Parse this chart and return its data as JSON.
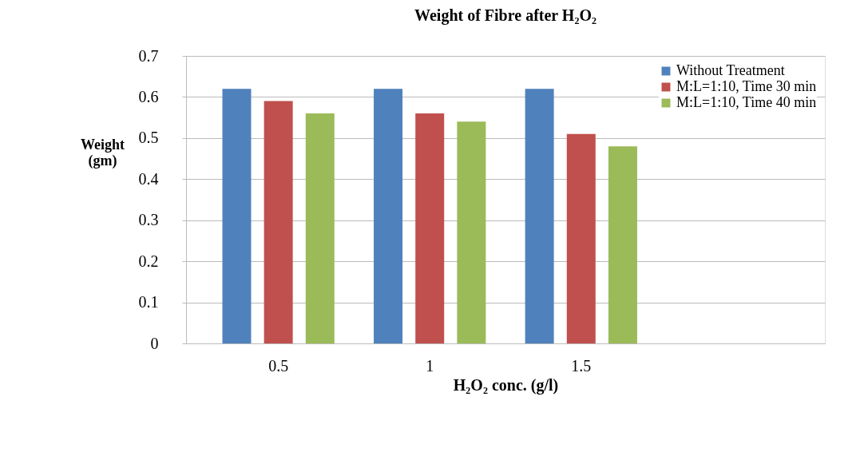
{
  "chart_data": {
    "type": "bar",
    "title": "Weight of Fibre after H₂O₂",
    "xlabel": "H₂O₂ conc. (g/l)",
    "ylabel": "Weight (gm)",
    "categories": [
      "0.5",
      "1",
      "1.5",
      null
    ],
    "series": [
      {
        "name": "Without Treatment",
        "color": "#4f81bd",
        "values": [
          0.62,
          0.62,
          0.62,
          null
        ]
      },
      {
        "name": "M:L=1:10, Time 30 min",
        "color": "#c0504d",
        "values": [
          0.59,
          0.56,
          0.51,
          null
        ]
      },
      {
        "name": "M:L=1:10, Time 40 min",
        "color": "#9bbb59",
        "values": [
          0.56,
          0.54,
          0.48,
          null
        ]
      }
    ],
    "ylim": [
      0,
      0.7
    ],
    "yticks": [
      0,
      0.1,
      0.2,
      0.3,
      0.4,
      0.5,
      0.6,
      0.7
    ],
    "grid": "y",
    "legend": "top right"
  }
}
